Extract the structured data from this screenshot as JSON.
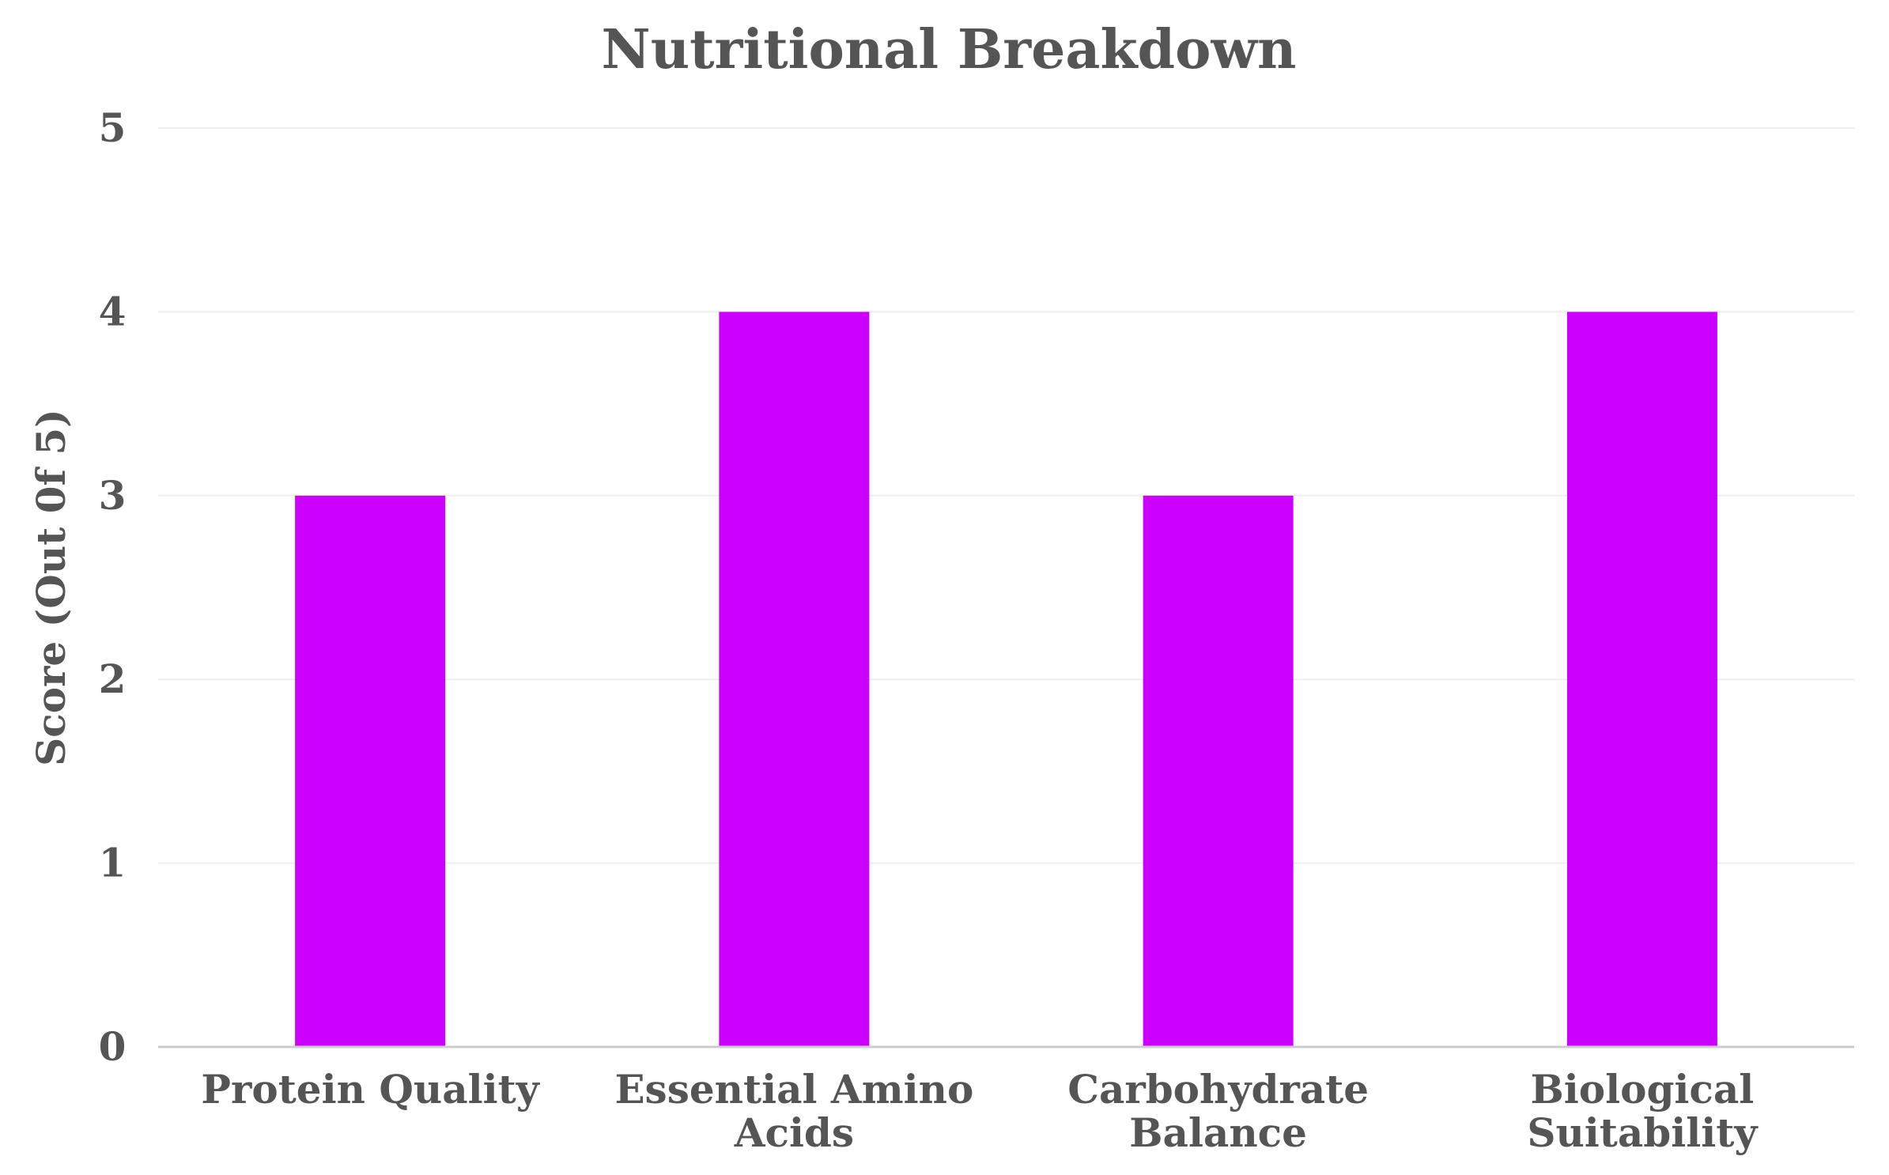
{
  "chart_data": {
    "type": "bar",
    "title": "Nutritional Breakdown",
    "xlabel": "",
    "ylabel": "Score (Out 0f 5)",
    "categories": [
      [
        "Protein Quality"
      ],
      [
        "Essential Amino",
        "Acids"
      ],
      [
        "Carbohydrate",
        "Balance"
      ],
      [
        "Biological",
        "Suitability"
      ]
    ],
    "values": [
      3,
      4,
      3,
      4
    ],
    "ylim": [
      0,
      5
    ],
    "yticks": [
      0,
      1,
      2,
      3,
      4,
      5
    ],
    "grid": true,
    "legend": "none",
    "colors": {
      "bar": "#cc00ff",
      "text": "#555555",
      "grid": "#eeeeee",
      "axis": "#cccccc"
    }
  }
}
